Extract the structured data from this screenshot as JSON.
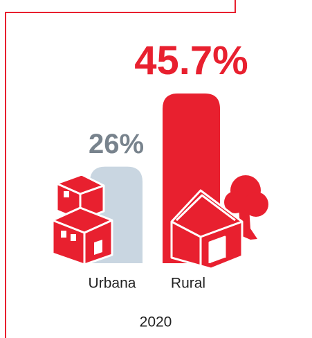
{
  "chart_data": {
    "type": "bar",
    "categories": [
      "Urbana",
      "Rural"
    ],
    "values": [
      26,
      45.7
    ],
    "value_labels": [
      "26%",
      "45.7%"
    ],
    "colors": [
      "#c9d6e1",
      "#e8202f"
    ],
    "label_colors": [
      "#78838d",
      "#e8202f"
    ],
    "subtitle": "2020"
  }
}
